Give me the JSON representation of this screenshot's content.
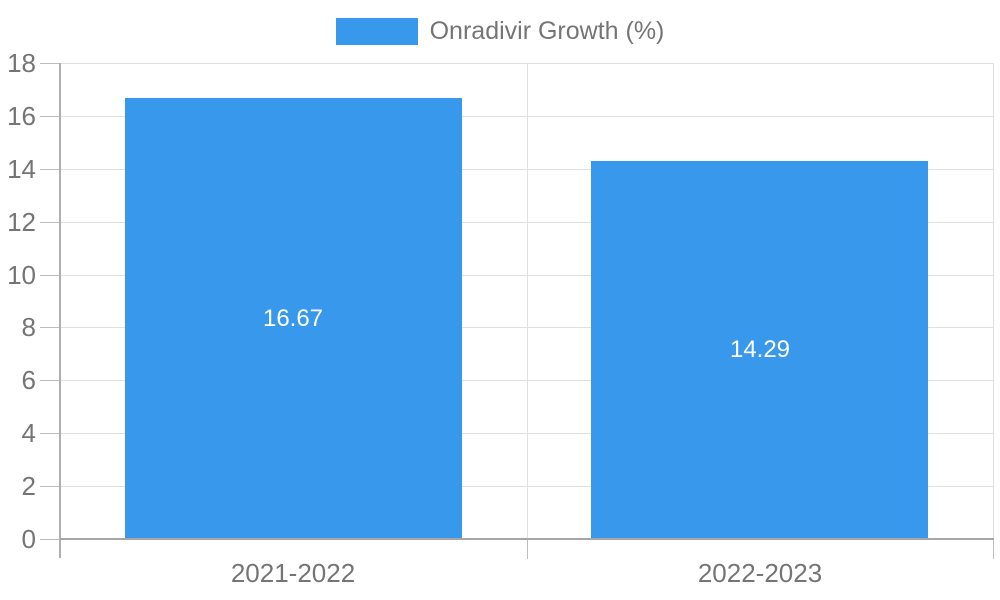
{
  "legend": {
    "label": "Onradivir Growth (%)"
  },
  "colors": {
    "bar": "#3899ec",
    "grid": "#e0e0e0",
    "axis": "#b0b0b0",
    "baseline": "#a6a6a6",
    "tick": "#bdbdbd",
    "label_text": "#757575",
    "bar_label_text": "#ffffff",
    "background": "#ffffff"
  },
  "chart_data": {
    "type": "bar",
    "title": "Onradivir Growth (%)",
    "categories": [
      "2021-2022",
      "2022-2023"
    ],
    "values": [
      16.67,
      14.29
    ],
    "value_labels": [
      "16.67",
      "14.29"
    ],
    "series": [
      {
        "name": "Onradivir Growth (%)",
        "values": [
          16.67,
          14.29
        ]
      }
    ],
    "xlabel": "",
    "ylabel": "",
    "ylim": [
      0,
      18
    ],
    "yticks": [
      0,
      2,
      4,
      6,
      8,
      10,
      12,
      14,
      16,
      18
    ],
    "grid": true,
    "legend_position": "top",
    "value_label_position": "center"
  }
}
